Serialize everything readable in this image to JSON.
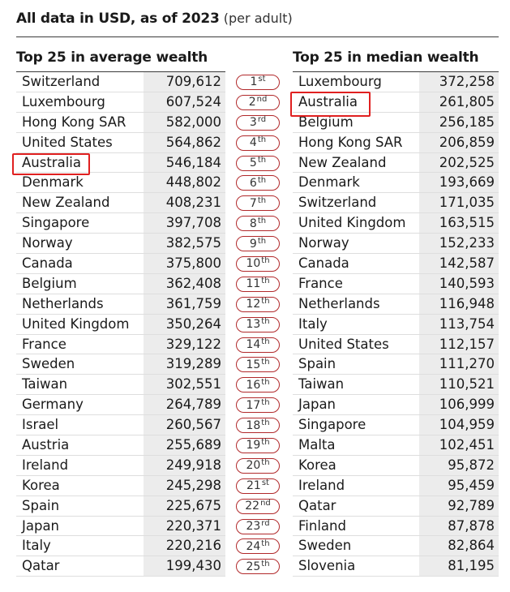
{
  "header": {
    "title": "All data in USD, as of 2023",
    "subtitle": "(per adult)"
  },
  "average": {
    "title": "Top 25 in average wealth",
    "rows": [
      {
        "country": "Switzerland",
        "value": "709,612"
      },
      {
        "country": "Luxembourg",
        "value": "607,524"
      },
      {
        "country": "Hong Kong SAR",
        "value": "582,000"
      },
      {
        "country": "United States",
        "value": "564,862"
      },
      {
        "country": "Australia",
        "value": "546,184"
      },
      {
        "country": "Denmark",
        "value": "448,802"
      },
      {
        "country": "New Zealand",
        "value": "408,231"
      },
      {
        "country": "Singapore",
        "value": "397,708"
      },
      {
        "country": "Norway",
        "value": "382,575"
      },
      {
        "country": "Canada",
        "value": "375,800"
      },
      {
        "country": "Belgium",
        "value": "362,408"
      },
      {
        "country": "Netherlands",
        "value": "361,759"
      },
      {
        "country": "United Kingdom",
        "value": "350,264"
      },
      {
        "country": "France",
        "value": "329,122"
      },
      {
        "country": "Sweden",
        "value": "319,289"
      },
      {
        "country": "Taiwan",
        "value": "302,551"
      },
      {
        "country": "Germany",
        "value": "264,789"
      },
      {
        "country": "Israel",
        "value": "260,567"
      },
      {
        "country": "Austria",
        "value": "255,689"
      },
      {
        "country": "Ireland",
        "value": "249,918"
      },
      {
        "country": "Korea",
        "value": "245,298"
      },
      {
        "country": "Spain",
        "value": "225,675"
      },
      {
        "country": "Japan",
        "value": "220,371"
      },
      {
        "country": "Italy",
        "value": "220,216"
      },
      {
        "country": "Qatar",
        "value": "199,430"
      }
    ]
  },
  "ranks": [
    {
      "num": "1",
      "suffix": "st"
    },
    {
      "num": "2",
      "suffix": "nd"
    },
    {
      "num": "3",
      "suffix": "rd"
    },
    {
      "num": "4",
      "suffix": "th"
    },
    {
      "num": "5",
      "suffix": "th"
    },
    {
      "num": "6",
      "suffix": "th"
    },
    {
      "num": "7",
      "suffix": "th"
    },
    {
      "num": "8",
      "suffix": "th"
    },
    {
      "num": "9",
      "suffix": "th"
    },
    {
      "num": "10",
      "suffix": "th"
    },
    {
      "num": "11",
      "suffix": "th"
    },
    {
      "num": "12",
      "suffix": "th"
    },
    {
      "num": "13",
      "suffix": "th"
    },
    {
      "num": "14",
      "suffix": "th"
    },
    {
      "num": "15",
      "suffix": "th"
    },
    {
      "num": "16",
      "suffix": "th"
    },
    {
      "num": "17",
      "suffix": "th"
    },
    {
      "num": "18",
      "suffix": "th"
    },
    {
      "num": "19",
      "suffix": "th"
    },
    {
      "num": "20",
      "suffix": "th"
    },
    {
      "num": "21",
      "suffix": "st"
    },
    {
      "num": "22",
      "suffix": "nd"
    },
    {
      "num": "23",
      "suffix": "rd"
    },
    {
      "num": "24",
      "suffix": "th"
    },
    {
      "num": "25",
      "suffix": "th"
    }
  ],
  "median": {
    "title": "Top 25 in median wealth",
    "rows": [
      {
        "country": "Luxembourg",
        "value": "372,258"
      },
      {
        "country": "Australia",
        "value": "261,805"
      },
      {
        "country": "Belgium",
        "value": "256,185"
      },
      {
        "country": "Hong Kong SAR",
        "value": "206,859"
      },
      {
        "country": "New Zealand",
        "value": "202,525"
      },
      {
        "country": "Denmark",
        "value": "193,669"
      },
      {
        "country": "Switzerland",
        "value": "171,035"
      },
      {
        "country": "United Kingdom",
        "value": "163,515"
      },
      {
        "country": "Norway",
        "value": "152,233"
      },
      {
        "country": "Canada",
        "value": "142,587"
      },
      {
        "country": "France",
        "value": "140,593"
      },
      {
        "country": "Netherlands",
        "value": "116,948"
      },
      {
        "country": "Italy",
        "value": "113,754"
      },
      {
        "country": "United States",
        "value": "112,157"
      },
      {
        "country": "Spain",
        "value": "111,270"
      },
      {
        "country": "Taiwan",
        "value": "110,521"
      },
      {
        "country": "Japan",
        "value": "106,999"
      },
      {
        "country": "Singapore",
        "value": "104,959"
      },
      {
        "country": "Malta",
        "value": "102,451"
      },
      {
        "country": "Korea",
        "value": "95,872"
      },
      {
        "country": "Ireland",
        "value": "95,459"
      },
      {
        "country": "Qatar",
        "value": "92,789"
      },
      {
        "country": "Finland",
        "value": "87,878"
      },
      {
        "country": "Sweden",
        "value": "82,864"
      },
      {
        "country": "Slovenia",
        "value": "81,195"
      }
    ]
  },
  "colors": {
    "rank_border": "#b1292b",
    "highlight_border": "#e02020",
    "value_bg": "#ececec"
  }
}
